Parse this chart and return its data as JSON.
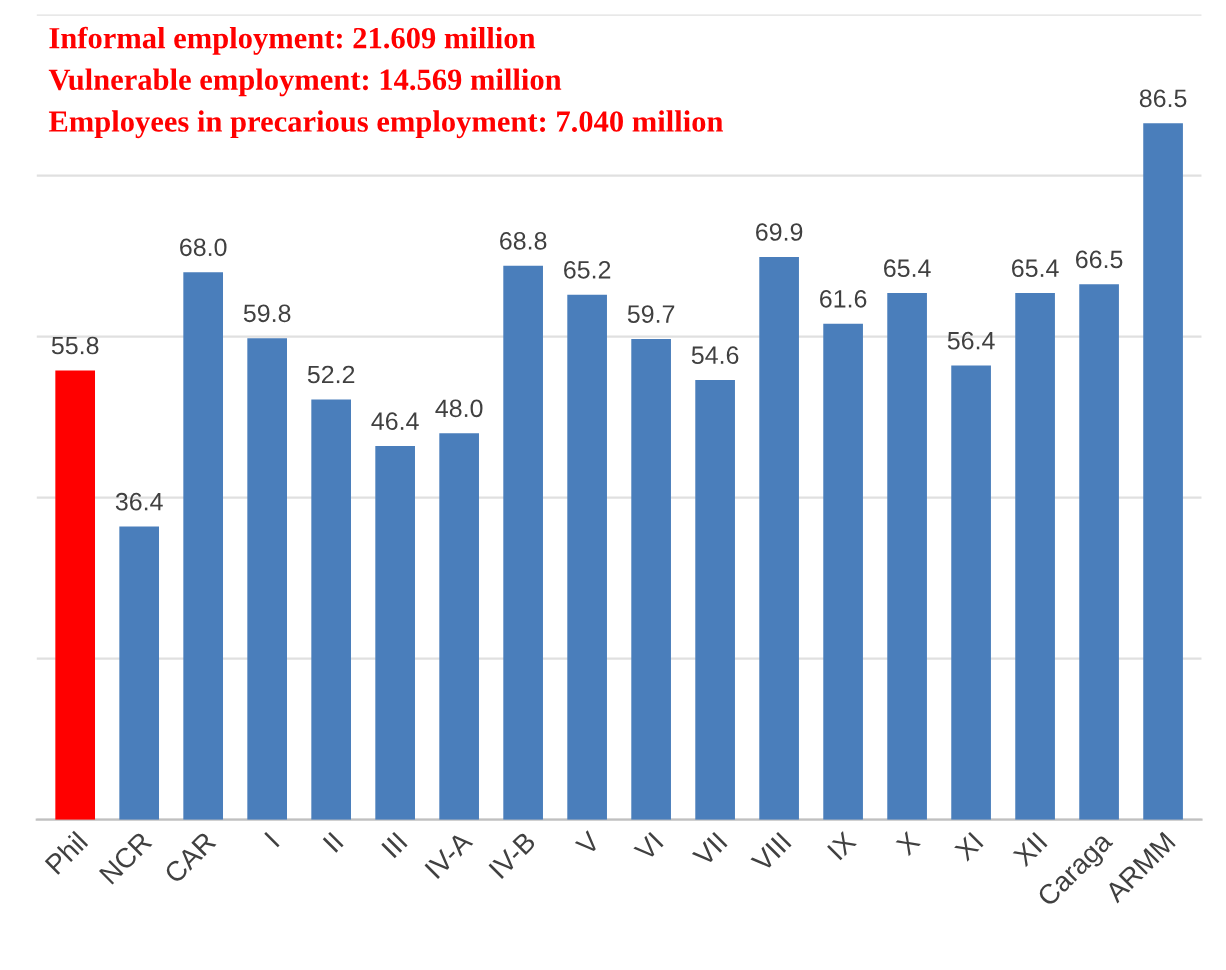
{
  "chart_data": {
    "type": "bar",
    "categories": [
      "Phil",
      "NCR",
      "CAR",
      "I",
      "II",
      "III",
      "IV-A",
      "IV-B",
      "V",
      "VI",
      "VII",
      "VIII",
      "IX",
      "X",
      "XI",
      "XII",
      "Caraga",
      "ARMM"
    ],
    "values": [
      55.8,
      36.4,
      68.0,
      59.8,
      52.2,
      46.4,
      48.0,
      68.8,
      65.2,
      59.7,
      54.6,
      69.9,
      61.6,
      65.4,
      56.4,
      65.4,
      66.5,
      86.5
    ],
    "value_labels": [
      "55.8",
      "36.4",
      "68.0",
      "59.8",
      "52.2",
      "46.4",
      "48.0",
      "68.8",
      "65.2",
      "59.7",
      "54.6",
      "69.9",
      "61.6",
      "65.4",
      "56.4",
      "65.4",
      "66.5",
      "86.5"
    ],
    "colors": [
      "#ff0000",
      "#4a7ebb",
      "#4a7ebb",
      "#4a7ebb",
      "#4a7ebb",
      "#4a7ebb",
      "#4a7ebb",
      "#4a7ebb",
      "#4a7ebb",
      "#4a7ebb",
      "#4a7ebb",
      "#4a7ebb",
      "#4a7ebb",
      "#4a7ebb",
      "#4a7ebb",
      "#4a7ebb",
      "#4a7ebb",
      "#4a7ebb"
    ],
    "ylim": [
      0,
      100
    ],
    "yticks": [
      {
        "value": 0,
        "label": null
      },
      {
        "value": 20,
        "label": null
      },
      {
        "value": 40,
        "label": null
      },
      {
        "value": 60,
        "label": null
      },
      {
        "value": 80,
        "label": null
      },
      {
        "value": 100,
        "label": null
      }
    ],
    "tick_labels": "x",
    "grid": "y",
    "annotations": [
      "Informal employment: 21.609 million",
      "Vulnerable employment: 14.569 million",
      "Employees in precarious employment: 7.040 million"
    ]
  }
}
